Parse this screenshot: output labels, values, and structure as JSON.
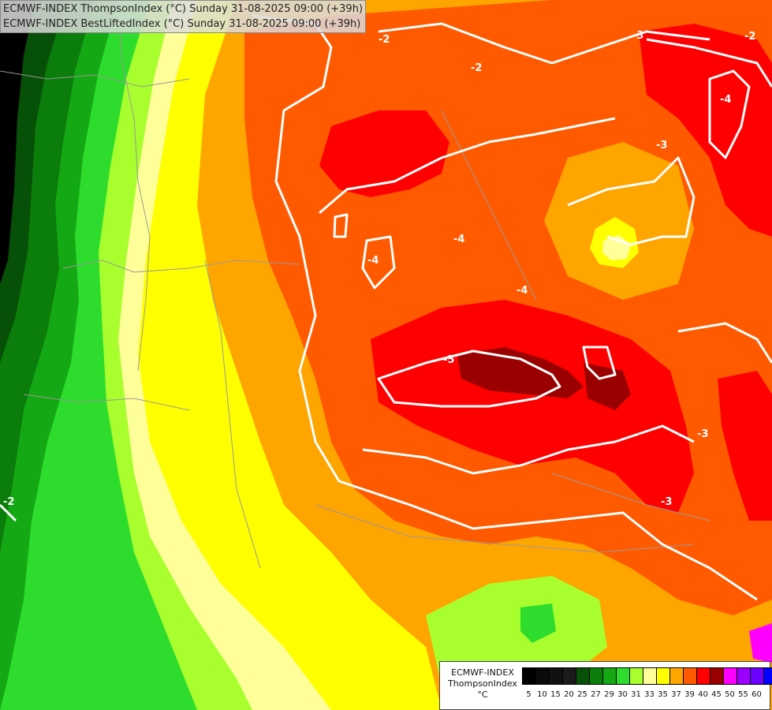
{
  "title": {
    "line1": "ECMWF-INDEX ThompsonIndex (°C) Sunday 31-08-2025 09:00 (+39h)",
    "line2": "ECMWF-INDEX BestLiftedIndex (°C) Sunday 31-08-2025 09:00 (+39h)"
  },
  "legend": {
    "line1": "ECMWF-INDEX",
    "line2": "ThompsonIndex",
    "line3": "°C",
    "bins": [
      {
        "label": "5",
        "color": "#000000"
      },
      {
        "label": "10",
        "color": "#0a0a0a"
      },
      {
        "label": "15",
        "color": "#111111"
      },
      {
        "label": "20",
        "color": "#1b1b1b"
      },
      {
        "label": "25",
        "color": "#075007"
      },
      {
        "label": "27",
        "color": "#0b7d0b"
      },
      {
        "label": "29",
        "color": "#14a814"
      },
      {
        "label": "30",
        "color": "#2ddc2d"
      },
      {
        "label": "31",
        "color": "#a8ff2d"
      },
      {
        "label": "33",
        "color": "#ffff99"
      },
      {
        "label": "35",
        "color": "#ffff00"
      },
      {
        "label": "37",
        "color": "#ffa500"
      },
      {
        "label": "39",
        "color": "#ff5a00"
      },
      {
        "label": "40",
        "color": "#ff0000"
      },
      {
        "label": "45",
        "color": "#9b0000"
      },
      {
        "label": "50",
        "color": "#ff00ff"
      },
      {
        "label": "55",
        "color": "#9b00ff"
      },
      {
        "label": "60",
        "color": "#6b00ff"
      },
      {
        "label": "",
        "color": "#0000ff"
      }
    ]
  },
  "contour_labels": [
    "-2",
    "-2",
    "-2",
    "-3",
    "-3",
    "-3",
    "-4",
    "-4",
    "-4",
    "-4",
    "-5",
    "-3",
    "-2"
  ]
}
